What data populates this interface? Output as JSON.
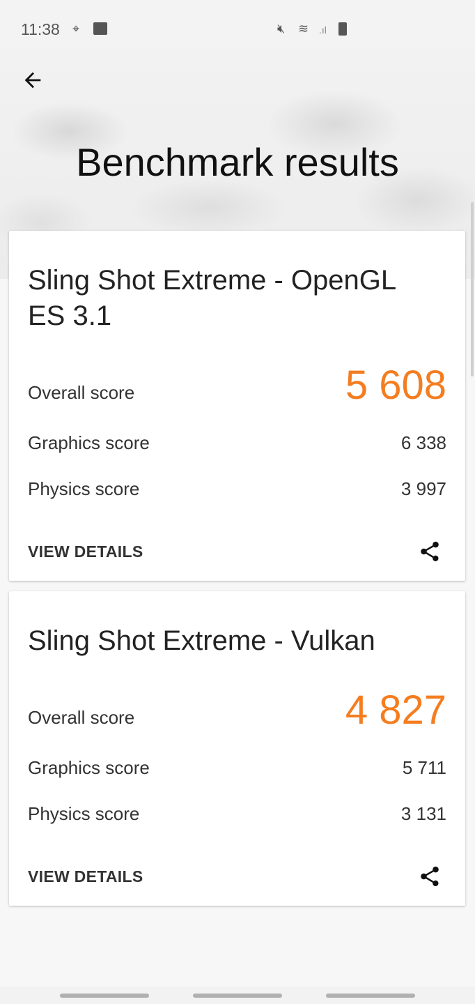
{
  "status_bar": {
    "time": "11:38",
    "icons": [
      "maps-icon",
      "gallery-icon",
      "mute-icon",
      "wifi-icon",
      "signal-icon",
      "battery-icon"
    ]
  },
  "header": {
    "title": "Benchmark results",
    "back_icon": "arrow-left-icon"
  },
  "accent_color": "#f47d20",
  "results": [
    {
      "title": "Sling Shot Extreme - OpenGL ES 3.1",
      "overall_label": "Overall score",
      "overall": "5 608",
      "graphics_label": "Graphics score",
      "graphics": "6 338",
      "physics_label": "Physics score",
      "physics": "3 997",
      "details_label": "VIEW DETAILS"
    },
    {
      "title": "Sling Shot Extreme - Vulkan",
      "overall_label": "Overall score",
      "overall": "4 827",
      "graphics_label": "Graphics score",
      "graphics": "5 711",
      "physics_label": "Physics score",
      "physics": "3 131",
      "details_label": "VIEW DETAILS"
    }
  ]
}
